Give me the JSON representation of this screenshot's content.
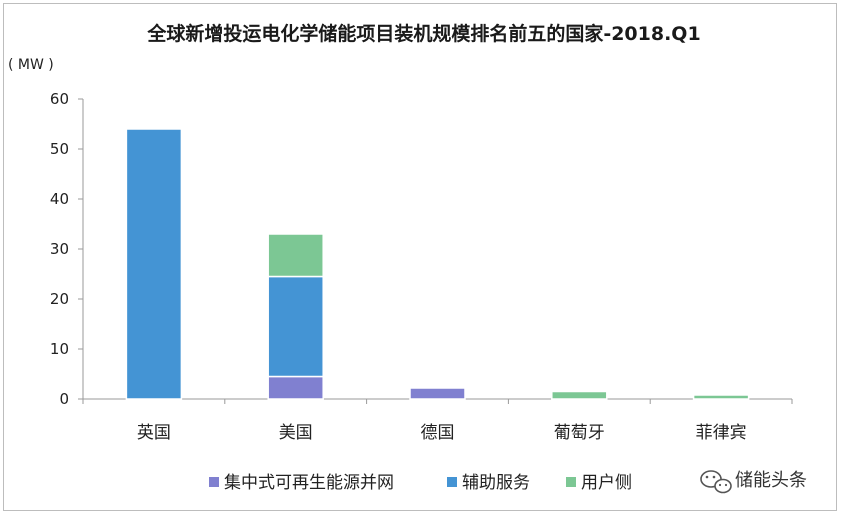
{
  "chart_data": {
    "type": "bar",
    "stacked": true,
    "title": "全球新增投运电化学储能项目装机规模排名前五的国家-2018.Q1",
    "ylabel": "( MW )",
    "xlabel": "",
    "ylim": [
      0,
      60
    ],
    "yticks": [
      0,
      10,
      20,
      30,
      40,
      50,
      60
    ],
    "grid": false,
    "legend_position": "bottom",
    "categories": [
      "英国",
      "美国",
      "德国",
      "葡萄牙",
      "菲律宾"
    ],
    "series": [
      {
        "name": "集中式可再生能源并网",
        "color": "#8080d0",
        "values": [
          0,
          4.5,
          2.2,
          0,
          0
        ]
      },
      {
        "name": "辅助服务",
        "color": "#4494d4",
        "values": [
          54,
          20,
          0,
          0,
          0
        ]
      },
      {
        "name": "用户侧",
        "color": "#7cc794",
        "values": [
          0,
          8.5,
          0,
          1.5,
          0.8
        ]
      }
    ]
  },
  "watermark": {
    "icon": "wechat-icon",
    "text": "储能头条"
  }
}
